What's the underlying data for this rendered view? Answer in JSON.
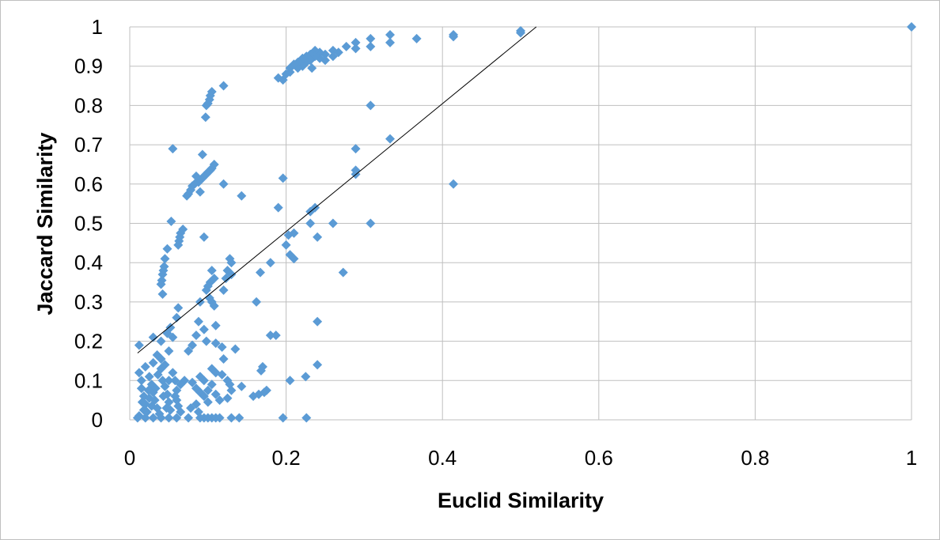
{
  "chart_data": {
    "type": "scatter",
    "title": "",
    "xlabel": "Euclid Similarity",
    "ylabel": "Jaccard Similarity",
    "xlim": [
      0,
      1
    ],
    "ylim": [
      0,
      1
    ],
    "x_ticks": [
      "0",
      "0.2",
      "0.4",
      "0.6",
      "0.8",
      "1"
    ],
    "y_ticks": [
      "0",
      "0.1",
      "0.2",
      "0.3",
      "0.4",
      "0.5",
      "0.6",
      "0.7",
      "0.8",
      "0.9",
      "1"
    ],
    "grid": true,
    "legend": "none",
    "marker": "diamond",
    "colors": {
      "marker": "#5b9bd5",
      "trendline": "#000000",
      "grid": "#bfbfbf"
    },
    "trendline": {
      "type": "linear",
      "x": [
        0.01,
        0.52
      ],
      "y": [
        0.17,
        1.0
      ]
    },
    "series": [
      {
        "points": [
          [
            1.0,
            1.0
          ],
          [
            0.5,
            0.99
          ],
          [
            0.5,
            0.985
          ],
          [
            0.414,
            0.98
          ],
          [
            0.414,
            0.975
          ],
          [
            0.367,
            0.97
          ],
          [
            0.333,
            0.98
          ],
          [
            0.333,
            0.96
          ],
          [
            0.308,
            0.97
          ],
          [
            0.308,
            0.95
          ],
          [
            0.289,
            0.96
          ],
          [
            0.289,
            0.945
          ],
          [
            0.277,
            0.95
          ],
          [
            0.267,
            0.935
          ],
          [
            0.26,
            0.94
          ],
          [
            0.26,
            0.925
          ],
          [
            0.25,
            0.93
          ],
          [
            0.25,
            0.915
          ],
          [
            0.243,
            0.935
          ],
          [
            0.243,
            0.92
          ],
          [
            0.237,
            0.94
          ],
          [
            0.237,
            0.925
          ],
          [
            0.231,
            0.93
          ],
          [
            0.231,
            0.915
          ],
          [
            0.226,
            0.925
          ],
          [
            0.226,
            0.91
          ],
          [
            0.221,
            0.92
          ],
          [
            0.221,
            0.9
          ],
          [
            0.215,
            0.91
          ],
          [
            0.215,
            0.895
          ],
          [
            0.21,
            0.905
          ],
          [
            0.205,
            0.895
          ],
          [
            0.205,
            0.885
          ],
          [
            0.2,
            0.88
          ],
          [
            0.196,
            0.865
          ],
          [
            0.19,
            0.87
          ],
          [
            0.233,
            0.895
          ],
          [
            0.12,
            0.85
          ],
          [
            0.105,
            0.835
          ],
          [
            0.103,
            0.825
          ],
          [
            0.102,
            0.815
          ],
          [
            0.1,
            0.805
          ],
          [
            0.098,
            0.8
          ],
          [
            0.097,
            0.77
          ],
          [
            0.308,
            0.8
          ],
          [
            0.333,
            0.715
          ],
          [
            0.289,
            0.69
          ],
          [
            0.289,
            0.635
          ],
          [
            0.289,
            0.625
          ],
          [
            0.414,
            0.6
          ],
          [
            0.055,
            0.69
          ],
          [
            0.093,
            0.675
          ],
          [
            0.108,
            0.65
          ],
          [
            0.105,
            0.64
          ],
          [
            0.103,
            0.635
          ],
          [
            0.1,
            0.63
          ],
          [
            0.098,
            0.625
          ],
          [
            0.095,
            0.62
          ],
          [
            0.093,
            0.615
          ],
          [
            0.09,
            0.61
          ],
          [
            0.088,
            0.605
          ],
          [
            0.085,
            0.62
          ],
          [
            0.083,
            0.6
          ],
          [
            0.08,
            0.595
          ],
          [
            0.078,
            0.585
          ],
          [
            0.075,
            0.575
          ],
          [
            0.073,
            0.57
          ],
          [
            0.09,
            0.58
          ],
          [
            0.12,
            0.6
          ],
          [
            0.143,
            0.57
          ],
          [
            0.196,
            0.615
          ],
          [
            0.19,
            0.54
          ],
          [
            0.237,
            0.54
          ],
          [
            0.231,
            0.53
          ],
          [
            0.053,
            0.505
          ],
          [
            0.068,
            0.485
          ],
          [
            0.065,
            0.475
          ],
          [
            0.064,
            0.465
          ],
          [
            0.063,
            0.455
          ],
          [
            0.062,
            0.445
          ],
          [
            0.048,
            0.435
          ],
          [
            0.045,
            0.41
          ],
          [
            0.044,
            0.39
          ],
          [
            0.043,
            0.38
          ],
          [
            0.042,
            0.37
          ],
          [
            0.041,
            0.355
          ],
          [
            0.04,
            0.345
          ],
          [
            0.042,
            0.32
          ],
          [
            0.095,
            0.465
          ],
          [
            0.26,
            0.5
          ],
          [
            0.308,
            0.5
          ],
          [
            0.231,
            0.5
          ],
          [
            0.24,
            0.465
          ],
          [
            0.21,
            0.475
          ],
          [
            0.203,
            0.47
          ],
          [
            0.2,
            0.445
          ],
          [
            0.205,
            0.42
          ],
          [
            0.21,
            0.41
          ],
          [
            0.128,
            0.41
          ],
          [
            0.13,
            0.4
          ],
          [
            0.125,
            0.38
          ],
          [
            0.13,
            0.37
          ],
          [
            0.123,
            0.36
          ],
          [
            0.12,
            0.33
          ],
          [
            0.18,
            0.4
          ],
          [
            0.167,
            0.375
          ],
          [
            0.273,
            0.375
          ],
          [
            0.105,
            0.38
          ],
          [
            0.108,
            0.36
          ],
          [
            0.103,
            0.35
          ],
          [
            0.1,
            0.34
          ],
          [
            0.098,
            0.33
          ],
          [
            0.102,
            0.31
          ],
          [
            0.105,
            0.3
          ],
          [
            0.108,
            0.29
          ],
          [
            0.09,
            0.3
          ],
          [
            0.162,
            0.3
          ],
          [
            0.062,
            0.285
          ],
          [
            0.06,
            0.26
          ],
          [
            0.052,
            0.235
          ],
          [
            0.048,
            0.22
          ],
          [
            0.11,
            0.24
          ],
          [
            0.095,
            0.23
          ],
          [
            0.088,
            0.25
          ],
          [
            0.085,
            0.215
          ],
          [
            0.08,
            0.19
          ],
          [
            0.075,
            0.175
          ],
          [
            0.098,
            0.2
          ],
          [
            0.11,
            0.195
          ],
          [
            0.118,
            0.185
          ],
          [
            0.135,
            0.18
          ],
          [
            0.18,
            0.215
          ],
          [
            0.187,
            0.215
          ],
          [
            0.24,
            0.25
          ],
          [
            0.012,
            0.19
          ],
          [
            0.03,
            0.21
          ],
          [
            0.04,
            0.2
          ],
          [
            0.055,
            0.21
          ],
          [
            0.17,
            0.135
          ],
          [
            0.168,
            0.125
          ],
          [
            0.24,
            0.14
          ],
          [
            0.225,
            0.11
          ],
          [
            0.205,
            0.1
          ],
          [
            0.12,
            0.155
          ],
          [
            0.105,
            0.13
          ],
          [
            0.11,
            0.12
          ],
          [
            0.118,
            0.115
          ],
          [
            0.125,
            0.1
          ],
          [
            0.128,
            0.09
          ],
          [
            0.13,
            0.075
          ],
          [
            0.143,
            0.085
          ],
          [
            0.175,
            0.075
          ],
          [
            0.172,
            0.07
          ],
          [
            0.165,
            0.065
          ],
          [
            0.158,
            0.06
          ],
          [
            0.125,
            0.055
          ],
          [
            0.09,
            0.11
          ],
          [
            0.095,
            0.1
          ],
          [
            0.08,
            0.095
          ],
          [
            0.085,
            0.08
          ],
          [
            0.09,
            0.07
          ],
          [
            0.095,
            0.06
          ],
          [
            0.105,
            0.09
          ],
          [
            0.1,
            0.075
          ],
          [
            0.11,
            0.065
          ],
          [
            0.115,
            0.05
          ],
          [
            0.1,
            0.045
          ],
          [
            0.085,
            0.04
          ],
          [
            0.078,
            0.03
          ],
          [
            0.088,
            0.02
          ],
          [
            0.07,
            0.1
          ],
          [
            0.065,
            0.09
          ],
          [
            0.06,
            0.075
          ],
          [
            0.058,
            0.06
          ],
          [
            0.012,
            0.12
          ],
          [
            0.015,
            0.1
          ],
          [
            0.015,
            0.08
          ],
          [
            0.018,
            0.06
          ],
          [
            0.02,
            0.04
          ],
          [
            0.022,
            0.02
          ],
          [
            0.012,
            0.01
          ],
          [
            0.025,
            0.11
          ],
          [
            0.028,
            0.09
          ],
          [
            0.03,
            0.07
          ],
          [
            0.032,
            0.05
          ],
          [
            0.035,
            0.03
          ],
          [
            0.038,
            0.015
          ],
          [
            0.04,
            0.13
          ],
          [
            0.042,
            0.1
          ],
          [
            0.045,
            0.085
          ],
          [
            0.048,
            0.065
          ],
          [
            0.05,
            0.045
          ],
          [
            0.052,
            0.025
          ],
          [
            0.055,
            0.12
          ],
          [
            0.058,
            0.1
          ],
          [
            0.06,
            0.05
          ],
          [
            0.062,
            0.035
          ],
          [
            0.065,
            0.02
          ],
          [
            0.03,
            0.145
          ],
          [
            0.035,
            0.165
          ],
          [
            0.04,
            0.155
          ],
          [
            0.045,
            0.14
          ],
          [
            0.05,
            0.175
          ],
          [
            0.02,
            0.135
          ],
          [
            0.018,
            0.025
          ],
          [
            0.025,
            0.055
          ],
          [
            0.033,
            0.08
          ],
          [
            0.043,
            0.06
          ],
          [
            0.028,
            0.035
          ],
          [
            0.016,
            0.045
          ],
          [
            0.036,
            0.115
          ],
          [
            0.05,
            0.1
          ],
          [
            0.024,
            0.075
          ],
          [
            0.047,
            0.03
          ],
          [
            0.01,
            0.005
          ],
          [
            0.02,
            0.005
          ],
          [
            0.03,
            0.005
          ],
          [
            0.04,
            0.005
          ],
          [
            0.05,
            0.005
          ],
          [
            0.06,
            0.005
          ],
          [
            0.075,
            0.005
          ],
          [
            0.09,
            0.005
          ],
          [
            0.095,
            0.005
          ],
          [
            0.1,
            0.005
          ],
          [
            0.105,
            0.005
          ],
          [
            0.11,
            0.005
          ],
          [
            0.115,
            0.005
          ],
          [
            0.13,
            0.005
          ],
          [
            0.14,
            0.005
          ],
          [
            0.196,
            0.005
          ],
          [
            0.226,
            0.005
          ]
        ]
      }
    ]
  }
}
